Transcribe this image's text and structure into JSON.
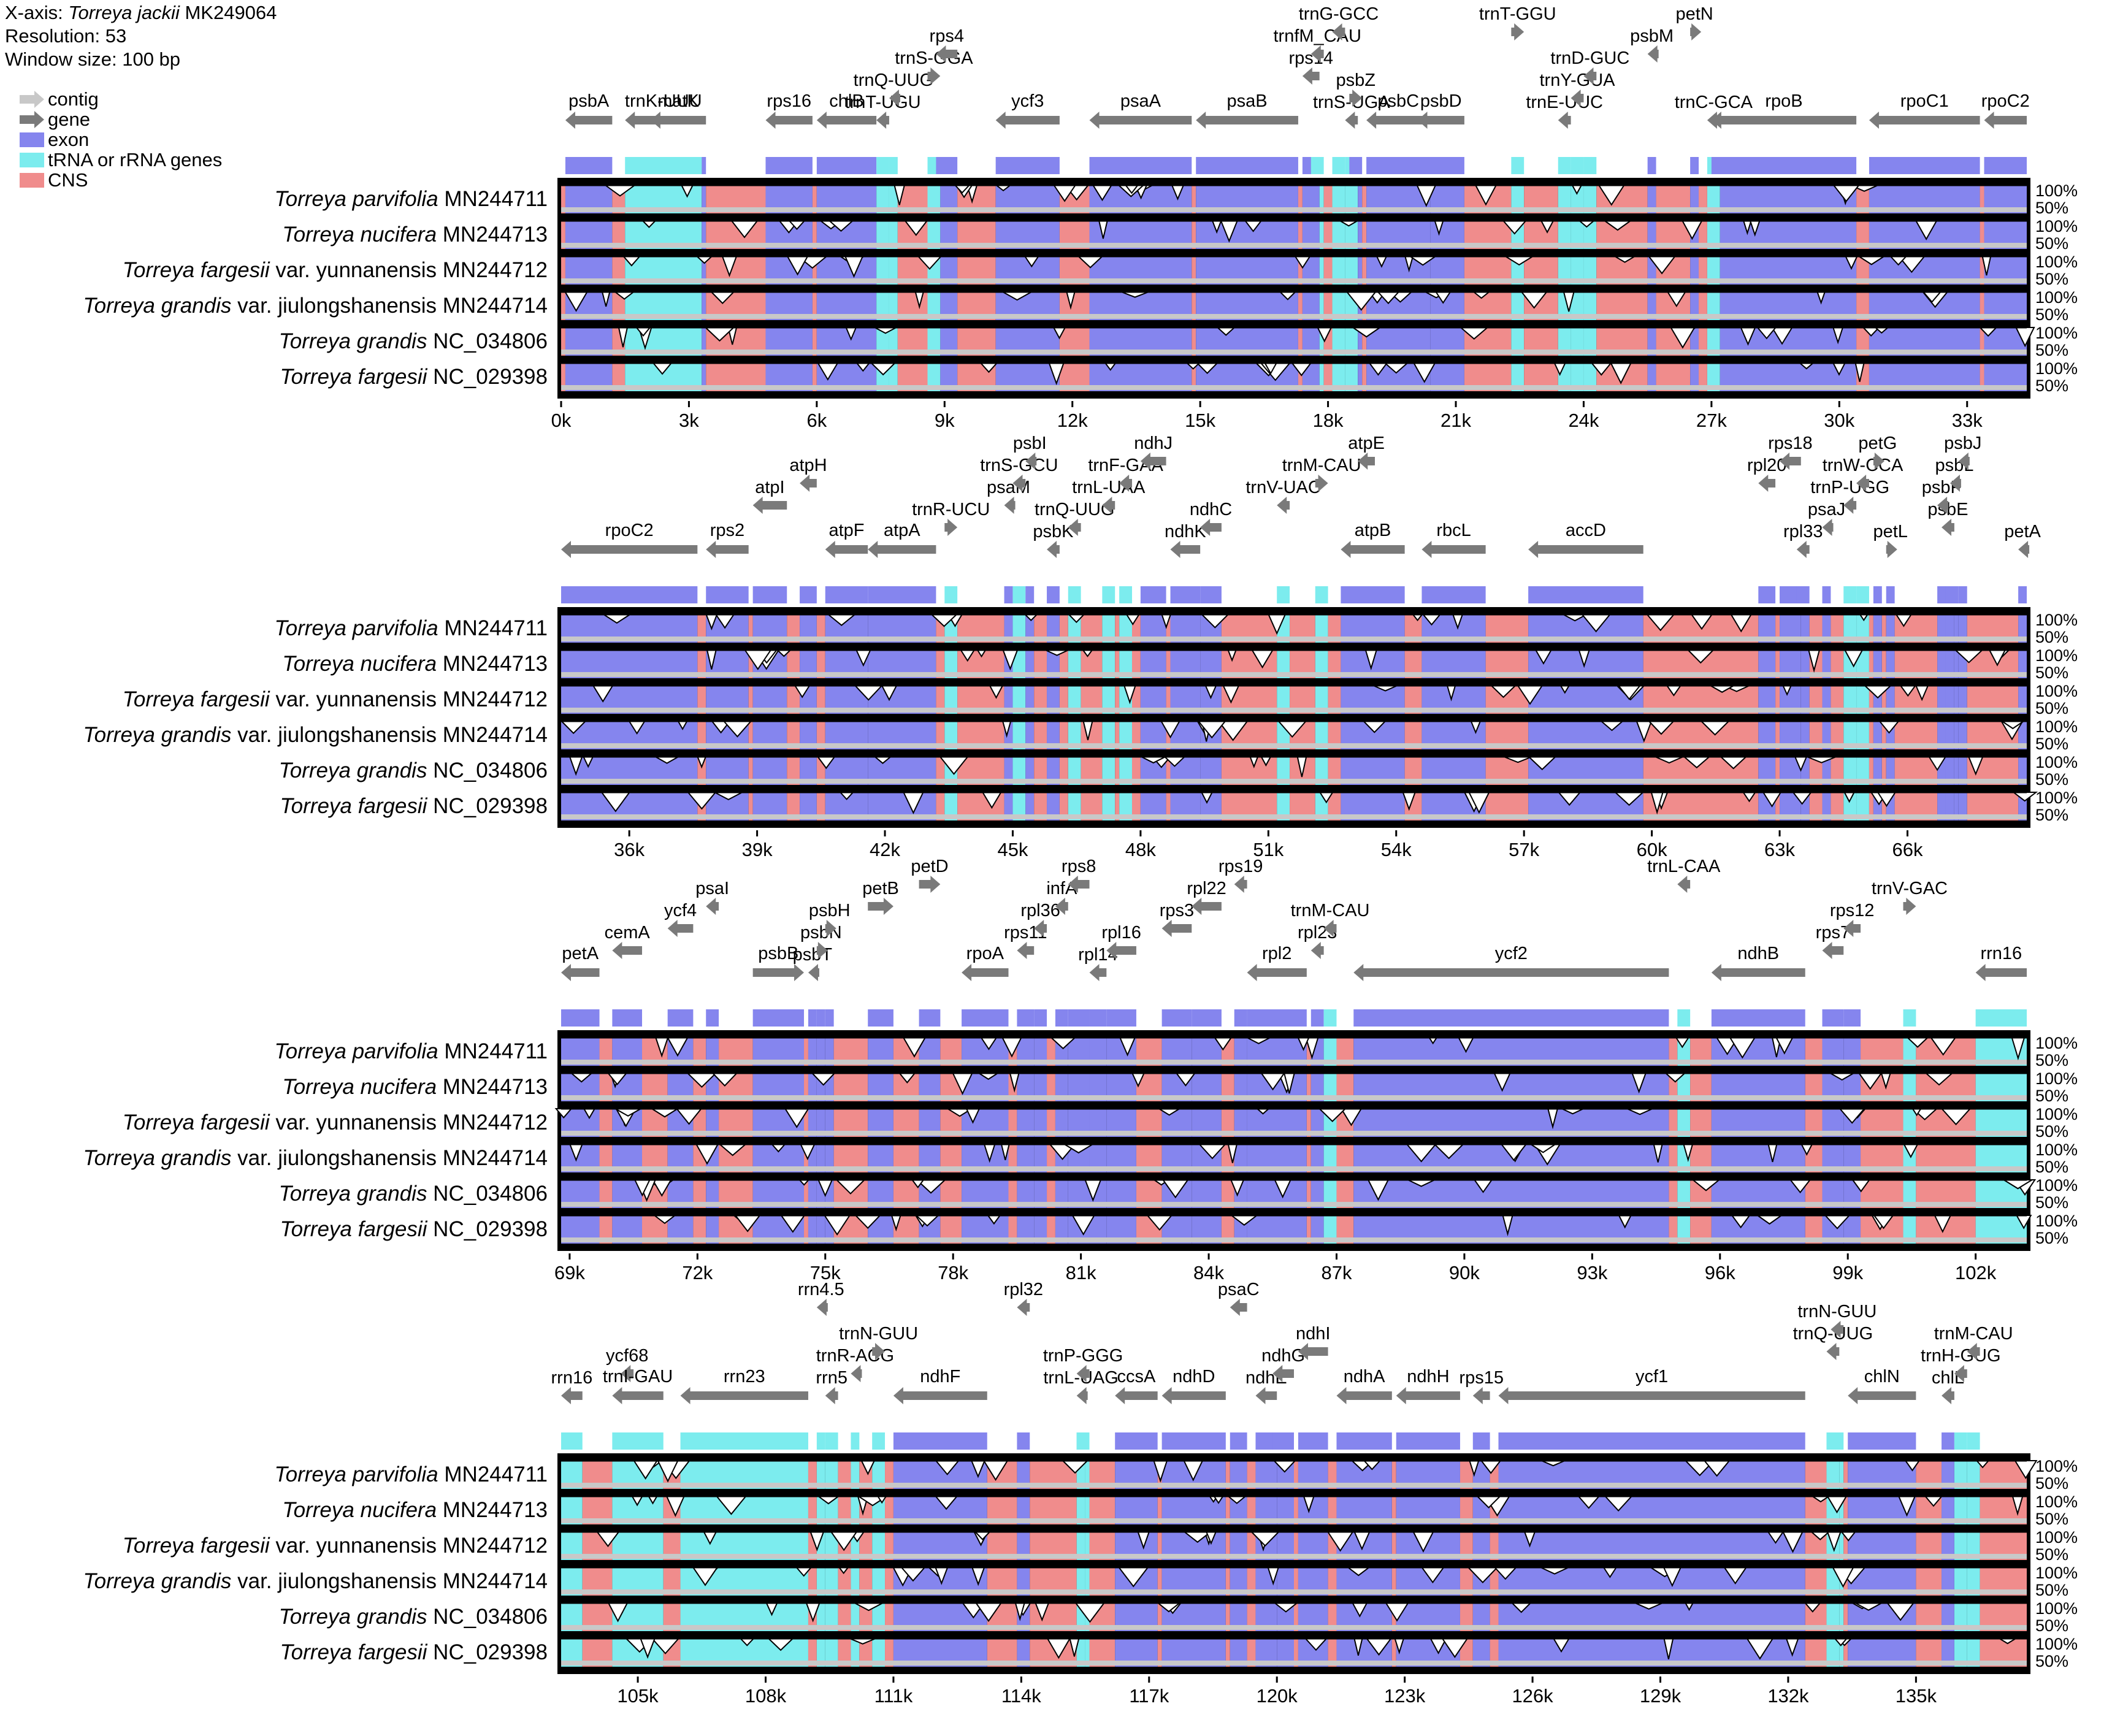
{
  "header": {
    "xaxis_prefix": "X-axis: ",
    "ref_species": "Torreya jackii",
    "ref_accession": " MK249064",
    "resolution": "Resolution: 53",
    "window": "Window size: 100 bp"
  },
  "legend": [
    {
      "label": "contig",
      "kind": "arrow",
      "color": "#c8c8c8"
    },
    {
      "label": "gene",
      "kind": "arrow",
      "color": "#7a7a7a"
    },
    {
      "label": "exon",
      "kind": "box",
      "color": "#8585ee"
    },
    {
      "label": "tRNA or rRNA genes",
      "kind": "box",
      "color": "#7cecee"
    },
    {
      "label": "CNS",
      "kind": "box",
      "color": "#f08c8c"
    }
  ],
  "colors": {
    "exon": "#8585ee",
    "rna": "#7cecee",
    "cns": "#f08c8c",
    "gene_arrow": "#7a7a7a",
    "contig_arrow": "#c8c8c8"
  },
  "species": [
    {
      "name": "Torreya parvifolia",
      "var": "",
      "acc": "MN244711"
    },
    {
      "name": "Torreya nucifera",
      "var": "",
      "acc": "MN244713"
    },
    {
      "name": "Torreya fargesii",
      "var": "var. yunnanensis",
      "acc": "MN244712"
    },
    {
      "name": "Torreya grandis",
      "var": "var. jiulongshanensis",
      "acc": "MN244714"
    },
    {
      "name": "Torreya grandis",
      "var": "",
      "acc": "NC_034806"
    },
    {
      "name": "Torreya fargesii",
      "var": "",
      "acc": "NC_029398"
    }
  ],
  "pct_labels": [
    "100%",
    "50%"
  ],
  "chart_data": {
    "type": "mVISTA sequence identity plot",
    "reference": "Torreya jackii MK249064",
    "resolution": 53,
    "window_bp": 100,
    "ylim_percent": [
      50,
      100
    ],
    "panels": [
      {
        "range": [
          0,
          34400
        ],
        "ticks": [
          "0k",
          "3k",
          "6k",
          "9k",
          "12k",
          "15k",
          "18k",
          "21k",
          "24k",
          "27k",
          "30k",
          "33k"
        ],
        "genes": [
          {
            "name": "psbA",
            "start": 100,
            "end": 1200,
            "dir": "L"
          },
          {
            "name": "matK",
            "start": 2100,
            "end": 3400,
            "dir": "L"
          },
          {
            "name": "trnK-UUU",
            "start": 1500,
            "end": 3300,
            "dir": "L"
          },
          {
            "name": "rps16",
            "start": 4800,
            "end": 5900,
            "dir": "L"
          },
          {
            "name": "chlB",
            "start": 6000,
            "end": 7400,
            "dir": "L"
          },
          {
            "name": "trnT-UGU",
            "start": 7400,
            "end": 7700,
            "dir": "L"
          },
          {
            "name": "trnQ-UUG",
            "start": 7700,
            "end": 7900,
            "dir": "L"
          },
          {
            "name": "trnS-GGA",
            "start": 8600,
            "end": 8900,
            "dir": "R"
          },
          {
            "name": "rps4",
            "start": 8800,
            "end": 9300,
            "dir": "L"
          },
          {
            "name": "ycf3",
            "start": 10200,
            "end": 11700,
            "dir": "L"
          },
          {
            "name": "psaA",
            "start": 12400,
            "end": 14800,
            "dir": "L"
          },
          {
            "name": "psaB",
            "start": 14900,
            "end": 17300,
            "dir": "L"
          },
          {
            "name": "rps14",
            "start": 17400,
            "end": 17800,
            "dir": "L"
          },
          {
            "name": "trnfM_CAU",
            "start": 17600,
            "end": 17900,
            "dir": "L"
          },
          {
            "name": "trnG-GCC",
            "start": 18100,
            "end": 18400,
            "dir": "L"
          },
          {
            "name": "trnS-UGA",
            "start": 18400,
            "end": 18700,
            "dir": "L"
          },
          {
            "name": "psbZ",
            "start": 18500,
            "end": 18800,
            "dir": "R"
          },
          {
            "name": "psbC",
            "start": 18900,
            "end": 20400,
            "dir": "L"
          },
          {
            "name": "psbD",
            "start": 20100,
            "end": 21200,
            "dir": "L"
          },
          {
            "name": "trnT-GGU",
            "start": 22300,
            "end": 22600,
            "dir": "R"
          },
          {
            "name": "trnE-UUC",
            "start": 23400,
            "end": 23700,
            "dir": "L"
          },
          {
            "name": "trnY-GUA",
            "start": 23700,
            "end": 24000,
            "dir": "L"
          },
          {
            "name": "trnD-GUC",
            "start": 24000,
            "end": 24300,
            "dir": "L"
          },
          {
            "name": "psbM",
            "start": 25500,
            "end": 25700,
            "dir": "L"
          },
          {
            "name": "petN",
            "start": 26500,
            "end": 26700,
            "dir": "R"
          },
          {
            "name": "trnC-GCA",
            "start": 26900,
            "end": 27200,
            "dir": "L"
          },
          {
            "name": "rpoB",
            "start": 27000,
            "end": 30400,
            "dir": "L"
          },
          {
            "name": "rpoC1",
            "start": 30700,
            "end": 33300,
            "dir": "L"
          },
          {
            "name": "rpoC2",
            "start": 33400,
            "end": 34400,
            "dir": "L"
          }
        ]
      },
      {
        "range": [
          34400,
          68800
        ],
        "ticks": [
          "36k",
          "39k",
          "42k",
          "45k",
          "48k",
          "51k",
          "54k",
          "57k",
          "60k",
          "63k",
          "66k"
        ],
        "genes": [
          {
            "name": "rpoC2",
            "start": 34400,
            "end": 37600,
            "dir": "L"
          },
          {
            "name": "rps2",
            "start": 37800,
            "end": 38800,
            "dir": "L"
          },
          {
            "name": "atpI",
            "start": 38900,
            "end": 39700,
            "dir": "L"
          },
          {
            "name": "atpH",
            "start": 40000,
            "end": 40400,
            "dir": "L"
          },
          {
            "name": "atpF",
            "start": 40600,
            "end": 41600,
            "dir": "L"
          },
          {
            "name": "atpA",
            "start": 41600,
            "end": 43200,
            "dir": "L"
          },
          {
            "name": "trnR-UCU",
            "start": 43400,
            "end": 43700,
            "dir": "R"
          },
          {
            "name": "psaM",
            "start": 44800,
            "end": 45000,
            "dir": "L"
          },
          {
            "name": "trnS-GCU",
            "start": 45000,
            "end": 45300,
            "dir": "L"
          },
          {
            "name": "psbI",
            "start": 45300,
            "end": 45500,
            "dir": "L"
          },
          {
            "name": "psbK",
            "start": 45800,
            "end": 46100,
            "dir": "L"
          },
          {
            "name": "trnQ-UUG",
            "start": 46300,
            "end": 46600,
            "dir": "L"
          },
          {
            "name": "trnL-UAA",
            "start": 47100,
            "end": 47400,
            "dir": "L"
          },
          {
            "name": "trnF-GAA",
            "start": 47500,
            "end": 47800,
            "dir": "L"
          },
          {
            "name": "ndhJ",
            "start": 48000,
            "end": 48600,
            "dir": "L"
          },
          {
            "name": "ndhK",
            "start": 48700,
            "end": 49400,
            "dir": "L"
          },
          {
            "name": "ndhC",
            "start": 49400,
            "end": 49900,
            "dir": "L"
          },
          {
            "name": "trnV-UAC",
            "start": 51200,
            "end": 51500,
            "dir": "L"
          },
          {
            "name": "trnM-CAU",
            "start": 52100,
            "end": 52400,
            "dir": "R"
          },
          {
            "name": "atpE",
            "start": 53100,
            "end": 53500,
            "dir": "L"
          },
          {
            "name": "atpB",
            "start": 52700,
            "end": 54200,
            "dir": "L"
          },
          {
            "name": "rbcL",
            "start": 54600,
            "end": 56100,
            "dir": "L"
          },
          {
            "name": "accD",
            "start": 57100,
            "end": 59800,
            "dir": "L"
          },
          {
            "name": "rpl20",
            "start": 62500,
            "end": 62900,
            "dir": "L"
          },
          {
            "name": "rps18",
            "start": 63000,
            "end": 63500,
            "dir": "L"
          },
          {
            "name": "rpl33",
            "start": 63400,
            "end": 63700,
            "dir": "L"
          },
          {
            "name": "psaJ",
            "start": 64000,
            "end": 64200,
            "dir": "L"
          },
          {
            "name": "trnP-UGG",
            "start": 64500,
            "end": 64800,
            "dir": "L"
          },
          {
            "name": "trnW-CCA",
            "start": 64800,
            "end": 65100,
            "dir": "L"
          },
          {
            "name": "petG",
            "start": 65200,
            "end": 65400,
            "dir": "R"
          },
          {
            "name": "petL",
            "start": 65500,
            "end": 65700,
            "dir": "R"
          },
          {
            "name": "psbE",
            "start": 66800,
            "end": 67100,
            "dir": "L"
          },
          {
            "name": "psbF",
            "start": 66700,
            "end": 66900,
            "dir": "L"
          },
          {
            "name": "psbL",
            "start": 67000,
            "end": 67200,
            "dir": "L"
          },
          {
            "name": "psbJ",
            "start": 67200,
            "end": 67400,
            "dir": "L"
          },
          {
            "name": "petA",
            "start": 68600,
            "end": 68800,
            "dir": "L"
          }
        ]
      },
      {
        "range": [
          68800,
          103200
        ],
        "ticks": [
          "69k",
          "72k",
          "75k",
          "78k",
          "81k",
          "84k",
          "87k",
          "90k",
          "93k",
          "96k",
          "99k",
          "102k"
        ],
        "genes": [
          {
            "name": "petA",
            "start": 68800,
            "end": 69700,
            "dir": "L"
          },
          {
            "name": "cemA",
            "start": 70000,
            "end": 70700,
            "dir": "L"
          },
          {
            "name": "ycf4",
            "start": 71300,
            "end": 71900,
            "dir": "L"
          },
          {
            "name": "psaI",
            "start": 72200,
            "end": 72500,
            "dir": "L"
          },
          {
            "name": "psbB",
            "start": 73300,
            "end": 74500,
            "dir": "R"
          },
          {
            "name": "psbT",
            "start": 74600,
            "end": 74800,
            "dir": "L"
          },
          {
            "name": "psbN",
            "start": 74800,
            "end": 75000,
            "dir": "R"
          },
          {
            "name": "psbH",
            "start": 75000,
            "end": 75200,
            "dir": "R"
          },
          {
            "name": "petB",
            "start": 76000,
            "end": 76600,
            "dir": "R"
          },
          {
            "name": "petD",
            "start": 77200,
            "end": 77700,
            "dir": "R"
          },
          {
            "name": "rpoA",
            "start": 78200,
            "end": 79300,
            "dir": "L"
          },
          {
            "name": "rps11",
            "start": 79500,
            "end": 79900,
            "dir": "L"
          },
          {
            "name": "rpl36",
            "start": 79900,
            "end": 80200,
            "dir": "L"
          },
          {
            "name": "infA",
            "start": 80400,
            "end": 80700,
            "dir": "L"
          },
          {
            "name": "rps8",
            "start": 80700,
            "end": 81200,
            "dir": "L"
          },
          {
            "name": "rpl14",
            "start": 81200,
            "end": 81600,
            "dir": "L"
          },
          {
            "name": "rpl16",
            "start": 81600,
            "end": 82300,
            "dir": "L"
          },
          {
            "name": "rps3",
            "start": 82900,
            "end": 83600,
            "dir": "L"
          },
          {
            "name": "rpl22",
            "start": 83600,
            "end": 84300,
            "dir": "L"
          },
          {
            "name": "rps19",
            "start": 84600,
            "end": 84900,
            "dir": "L"
          },
          {
            "name": "rpl2",
            "start": 84900,
            "end": 86300,
            "dir": "L"
          },
          {
            "name": "rpl23",
            "start": 86400,
            "end": 86700,
            "dir": "L"
          },
          {
            "name": "trnM-CAU",
            "start": 86700,
            "end": 87000,
            "dir": "L"
          },
          {
            "name": "ycf2",
            "start": 87400,
            "end": 94800,
            "dir": "L"
          },
          {
            "name": "trnL-CAA",
            "start": 95000,
            "end": 95300,
            "dir": "L"
          },
          {
            "name": "ndhB",
            "start": 95800,
            "end": 98000,
            "dir": "L"
          },
          {
            "name": "rps7",
            "start": 98400,
            "end": 98900,
            "dir": "L"
          },
          {
            "name": "rps12",
            "start": 98900,
            "end": 99300,
            "dir": "L"
          },
          {
            "name": "trnV-GAC",
            "start": 100300,
            "end": 100600,
            "dir": "R"
          },
          {
            "name": "rrn16",
            "start": 102000,
            "end": 103200,
            "dir": "L"
          }
        ]
      },
      {
        "range": [
          103200,
          137600
        ],
        "ticks": [
          "105k",
          "108k",
          "111k",
          "114k",
          "117k",
          "120k",
          "123k",
          "126k",
          "129k",
          "132k",
          "135k"
        ],
        "genes": [
          {
            "name": "rrn16",
            "start": 103200,
            "end": 103700,
            "dir": "L"
          },
          {
            "name": "ycf68",
            "start": 104600,
            "end": 104900,
            "dir": "L"
          },
          {
            "name": "trnI-GAU",
            "start": 104400,
            "end": 105600,
            "dir": "L"
          },
          {
            "name": "rrn23",
            "start": 106000,
            "end": 109000,
            "dir": "L"
          },
          {
            "name": "rrn4.5",
            "start": 109200,
            "end": 109400,
            "dir": "L"
          },
          {
            "name": "rrn5",
            "start": 109400,
            "end": 109700,
            "dir": "L"
          },
          {
            "name": "trnR-ACG",
            "start": 110000,
            "end": 110200,
            "dir": "L"
          },
          {
            "name": "trnN-GUU",
            "start": 110500,
            "end": 110800,
            "dir": "R"
          },
          {
            "name": "ndhF",
            "start": 111000,
            "end": 113200,
            "dir": "L"
          },
          {
            "name": "rpl32",
            "start": 113900,
            "end": 114200,
            "dir": "L"
          },
          {
            "name": "trnL-UAG",
            "start": 115300,
            "end": 115500,
            "dir": "L"
          },
          {
            "name": "trnP-GGG",
            "start": 115300,
            "end": 115600,
            "dir": "L"
          },
          {
            "name": "ccsA",
            "start": 116200,
            "end": 117200,
            "dir": "L"
          },
          {
            "name": "ndhD",
            "start": 117300,
            "end": 118800,
            "dir": "L"
          },
          {
            "name": "psaC",
            "start": 118900,
            "end": 119300,
            "dir": "L"
          },
          {
            "name": "ndhE",
            "start": 119500,
            "end": 120000,
            "dir": "L"
          },
          {
            "name": "ndhG",
            "start": 119900,
            "end": 120400,
            "dir": "L"
          },
          {
            "name": "ndhI",
            "start": 120500,
            "end": 121200,
            "dir": "L"
          },
          {
            "name": "ndhA",
            "start": 121400,
            "end": 122700,
            "dir": "L"
          },
          {
            "name": "ndhH",
            "start": 122800,
            "end": 124300,
            "dir": "L"
          },
          {
            "name": "rps15",
            "start": 124600,
            "end": 125000,
            "dir": "L"
          },
          {
            "name": "ycf1",
            "start": 125200,
            "end": 132400,
            "dir": "L"
          },
          {
            "name": "trnQ-UUG",
            "start": 132900,
            "end": 133200,
            "dir": "L"
          },
          {
            "name": "trnN-GUU",
            "start": 133000,
            "end": 133300,
            "dir": "L"
          },
          {
            "name": "chlN",
            "start": 133400,
            "end": 135000,
            "dir": "L"
          },
          {
            "name": "chlL",
            "start": 135600,
            "end": 135900,
            "dir": "L"
          },
          {
            "name": "trnH-GUG",
            "start": 135900,
            "end": 136200,
            "dir": "L"
          },
          {
            "name": "trnM-CAU",
            "start": 136200,
            "end": 136500,
            "dir": "L"
          }
        ]
      }
    ]
  }
}
